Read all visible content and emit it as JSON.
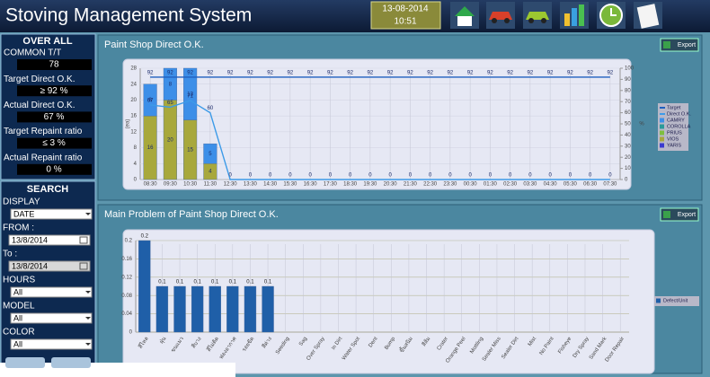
{
  "header": {
    "title": "Stoving Management System",
    "date": "13-08-2014",
    "time": "10:51"
  },
  "overall": {
    "title": "OVER ALL",
    "items": [
      {
        "label": "COMMON T/T",
        "value": "78"
      },
      {
        "label": "Target Direct O.K.",
        "value": "≥ 92 %"
      },
      {
        "label": "Actual Direct O.K.",
        "value": "67 %"
      },
      {
        "label": "Target Repaint ratio",
        "value": "≤ 3 %"
      },
      {
        "label": "Actual Repaint ratio",
        "value": "0 %"
      }
    ]
  },
  "search": {
    "title": "SEARCH",
    "fields": [
      {
        "label": "DISPLAY",
        "value": "DATE",
        "kind": "select"
      },
      {
        "label": "FROM :",
        "value": "13/8/2014",
        "kind": "date"
      },
      {
        "label": "To :",
        "value": "13/8/2014",
        "kind": "date"
      },
      {
        "label": "HOURS",
        "value": "All",
        "kind": "select"
      },
      {
        "label": "MODEL",
        "value": "All",
        "kind": "select"
      },
      {
        "label": "COLOR",
        "value": "All",
        "kind": "select"
      }
    ]
  },
  "charts": [
    {
      "type": "bar",
      "title": "Paint Shop Direct O.K.",
      "export": "Export",
      "ylabel": "(ea)",
      "y2label": "%",
      "categories": [
        "08:30",
        "09:30",
        "10:30",
        "11:30",
        "12:30",
        "13:30",
        "14:30",
        "15:30",
        "16:30",
        "17:30",
        "18:30",
        "19:30",
        "20:30",
        "21:30",
        "22:30",
        "23:30",
        "00:30",
        "01:30",
        "02:30",
        "03:30",
        "04:30",
        "05:30",
        "06:30",
        "07:30"
      ],
      "ylim": [
        0,
        28
      ],
      "yticks": [
        0,
        4,
        8,
        12,
        16,
        20,
        24,
        28
      ],
      "y2lim": [
        0,
        100
      ],
      "y2ticks": [
        0,
        10,
        20,
        30,
        40,
        50,
        60,
        70,
        80,
        90,
        100
      ],
      "series": [
        {
          "name": "Target",
          "kind": "line",
          "axis": "y2",
          "color": "#1f5fbf",
          "values": [
            92,
            92,
            92,
            92,
            92,
            92,
            92,
            92,
            92,
            92,
            92,
            92,
            92,
            92,
            92,
            92,
            92,
            92,
            92,
            92,
            92,
            92,
            92,
            92
          ]
        },
        {
          "name": "Direct O.K.",
          "kind": "line",
          "axis": "y2",
          "color": "#3d9be8",
          "values": [
            67,
            65,
            71,
            60,
            0,
            0,
            0,
            0,
            0,
            0,
            0,
            0,
            0,
            0,
            0,
            0,
            0,
            0,
            0,
            0,
            0,
            0,
            0,
            0
          ]
        },
        {
          "name": "CAMRY",
          "kind": "bar",
          "color": "#3d8fe8",
          "values": [
            8,
            8,
            13,
            5,
            0,
            0,
            0,
            0,
            0,
            0,
            0,
            0,
            0,
            0,
            0,
            0,
            0,
            0,
            0,
            0,
            0,
            0,
            0,
            0
          ]
        },
        {
          "name": "COROLLA",
          "kind": "bar",
          "color": "#2a9a9a",
          "values": [
            0,
            0,
            0,
            0,
            0,
            0,
            0,
            0,
            0,
            0,
            0,
            0,
            0,
            0,
            0,
            0,
            0,
            0,
            0,
            0,
            0,
            0,
            0,
            0
          ]
        },
        {
          "name": "PRIUS",
          "kind": "bar",
          "color": "#7fbf3f",
          "values": [
            0,
            0,
            0,
            0,
            0,
            0,
            0,
            0,
            0,
            0,
            0,
            0,
            0,
            0,
            0,
            0,
            0,
            0,
            0,
            0,
            0,
            0,
            0,
            0
          ]
        },
        {
          "name": "VIOS",
          "kind": "bar",
          "color": "#a8a83c",
          "values": [
            16,
            20,
            15,
            4,
            0,
            0,
            0,
            0,
            0,
            0,
            0,
            0,
            0,
            0,
            0,
            0,
            0,
            0,
            0,
            0,
            0,
            0,
            0,
            0
          ]
        },
        {
          "name": "YARIS",
          "kind": "bar",
          "color": "#3a3ad0",
          "values": [
            0,
            0,
            0,
            0,
            0,
            0,
            0,
            0,
            0,
            0,
            0,
            0,
            0,
            0,
            0,
            0,
            0,
            0,
            0,
            0,
            0,
            0,
            0,
            0
          ]
        }
      ]
    },
    {
      "type": "bar",
      "title": "Main Problem of Paint Shop Direct O.K.",
      "export": "Export",
      "categories": [
        "สีไหล",
        "ฝุ่น",
        "ขนแมว",
        "สีบาง",
        "สีไม่ติด",
        "ฟองอากาศ",
        "รอยขีด",
        "สีด่าง",
        "Seeding",
        "Sag",
        "Over Spray",
        "In Dirt",
        "Water Spot",
        "Dent",
        "Bump",
        "ขึ้นสนิม",
        "สีส้ม",
        "Crater",
        "Orange Peel",
        "Mottling",
        "Sealer Miss",
        "Sealer Dirt",
        "Mist",
        "No Paint",
        "Fisheye",
        "Dry Spray",
        "Sand Mark",
        "Door Repair"
      ],
      "ylim": [
        0,
        0.2
      ],
      "yticks": [
        0,
        0.04,
        0.08,
        0.12,
        0.16,
        0.2
      ],
      "series": [
        {
          "name": "Defect/Unit",
          "kind": "bar",
          "color": "#1f5fa8",
          "values": [
            0.2,
            0.1,
            0.1,
            0.1,
            0.1,
            0.1,
            0.1,
            0.1,
            0,
            0,
            0,
            0,
            0,
            0,
            0,
            0,
            0,
            0,
            0,
            0,
            0,
            0,
            0,
            0,
            0,
            0,
            0,
            0
          ]
        }
      ]
    }
  ]
}
